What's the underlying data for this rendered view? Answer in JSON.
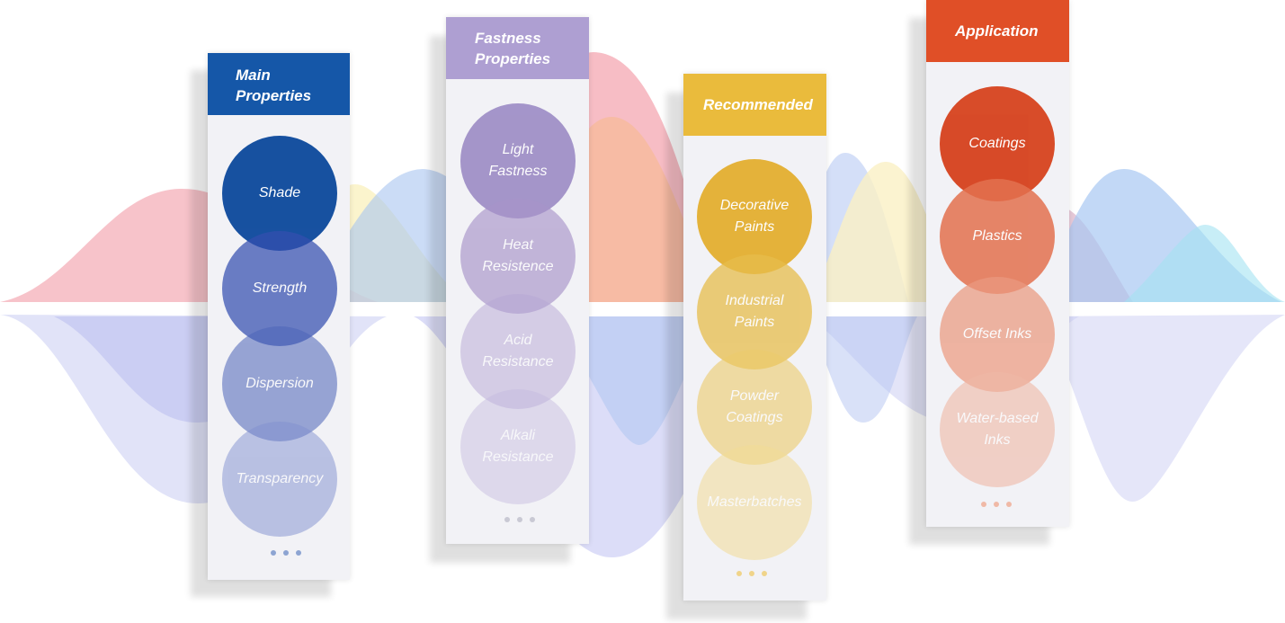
{
  "colors": {
    "blue": "#1557a8",
    "purple": "#b09fd2",
    "gold": "#eabb3c",
    "orange": "#e04f27",
    "panel_bg": "#f2f2f6"
  },
  "columns": [
    {
      "title_lines": [
        "Main",
        "Properties"
      ],
      "items": [
        {
          "lines": [
            "Shade"
          ]
        },
        {
          "lines": [
            "Strength"
          ]
        },
        {
          "lines": [
            "Dispersion"
          ]
        },
        {
          "lines": [
            "Transparency"
          ]
        }
      ],
      "more": "..."
    },
    {
      "title_lines": [
        "Fastness",
        "Properties"
      ],
      "items": [
        {
          "lines": [
            "Light",
            "Fastness"
          ]
        },
        {
          "lines": [
            "Heat",
            "Resistence"
          ]
        },
        {
          "lines": [
            "Acid",
            "Resistance"
          ]
        },
        {
          "lines": [
            "Alkali",
            "Resistance"
          ]
        }
      ],
      "more": "..."
    },
    {
      "title_lines": [
        "Recommended"
      ],
      "items": [
        {
          "lines": [
            "Decorative",
            "Paints"
          ]
        },
        {
          "lines": [
            "Industrial",
            "Paints"
          ]
        },
        {
          "lines": [
            "Powder",
            "Coatings"
          ]
        },
        {
          "lines": [
            "Masterbatches"
          ]
        }
      ],
      "more": "..."
    },
    {
      "title_lines": [
        "Application"
      ],
      "items": [
        {
          "lines": [
            "Coatings"
          ]
        },
        {
          "lines": [
            "Plastics"
          ]
        },
        {
          "lines": [
            "Offset Inks"
          ]
        },
        {
          "lines": [
            "Water-based",
            "Inks"
          ]
        }
      ],
      "more": "..."
    }
  ]
}
